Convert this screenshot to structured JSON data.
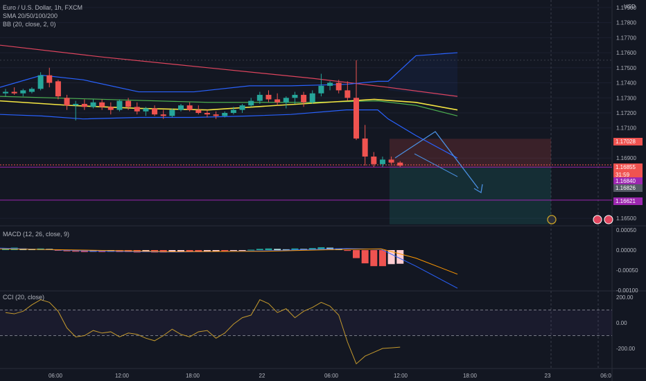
{
  "main_legend": {
    "symbol": "Euro / U.S. Dollar, 1h, FXCM",
    "sma": "SMA 20/50/100/200",
    "bb": "BB (20, close, 2, 0)"
  },
  "currency": "USD",
  "price_axis": [
    "1.17900",
    "1.17800",
    "1.17700",
    "1.17600",
    "1.17500",
    "1.17400",
    "1.17300",
    "1.17200",
    "1.17100",
    "1.16900",
    "1.16500"
  ],
  "price_tags": {
    "stop": "1.17028",
    "last": "1.16855",
    "countdown": "31:59",
    "entry": "1.16840",
    "level": "1.16826",
    "target": "1.16621"
  },
  "macd": {
    "legend": "MACD (12, 26, close, 9)",
    "axis": [
      "0.00050",
      "0.00000",
      "-0.00050",
      "-0.00100"
    ]
  },
  "cci": {
    "legend": "CCI (20, close)",
    "axis": [
      "200.00",
      "0.00",
      "-200.00"
    ]
  },
  "time_axis": [
    "06:00",
    "12:00",
    "18:00",
    "22",
    "06:00",
    "12:00",
    "18:00",
    "23",
    "06:0"
  ],
  "colors": {
    "up": "#26a69a",
    "down": "#ef5350",
    "sma_yellow": "#f5e642",
    "sma_green": "#4caf50",
    "sma_red": "#e0455e",
    "bb_blue": "#2962ff",
    "purple": "#9c27b0",
    "cci": "#c59a2d"
  },
  "chart_data": {
    "type": "candlestick",
    "candles": [
      [
        1.1733,
        1.1736,
        1.1731,
        1.1734
      ],
      [
        1.1734,
        1.1737,
        1.1732,
        1.1733
      ],
      [
        1.1733,
        1.1736,
        1.1731,
        1.1735
      ],
      [
        1.1734,
        1.1737,
        1.1733,
        1.1736
      ],
      [
        1.1736,
        1.1747,
        1.1735,
        1.1745
      ],
      [
        1.1745,
        1.175,
        1.1737,
        1.174
      ],
      [
        1.1741,
        1.1742,
        1.1729,
        1.1731
      ],
      [
        1.173,
        1.1732,
        1.1722,
        1.1725
      ],
      [
        1.1725,
        1.1728,
        1.1715,
        1.1726
      ],
      [
        1.1726,
        1.1729,
        1.1722,
        1.1724
      ],
      [
        1.1724,
        1.1729,
        1.1723,
        1.1727
      ],
      [
        1.1727,
        1.1729,
        1.1722,
        1.1724
      ],
      [
        1.1724,
        1.1727,
        1.1719,
        1.1722
      ],
      [
        1.1722,
        1.1729,
        1.1721,
        1.1728
      ],
      [
        1.1728,
        1.173,
        1.1722,
        1.1724
      ],
      [
        1.1724,
        1.1727,
        1.1719,
        1.1721
      ],
      [
        1.1721,
        1.1724,
        1.1718,
        1.1723
      ],
      [
        1.1723,
        1.1725,
        1.1718,
        1.1719
      ],
      [
        1.1719,
        1.1722,
        1.1716,
        1.1718
      ],
      [
        1.1718,
        1.1723,
        1.1717,
        1.1722
      ],
      [
        1.1722,
        1.1726,
        1.1721,
        1.1725
      ],
      [
        1.1725,
        1.1727,
        1.1721,
        1.1722
      ],
      [
        1.1722,
        1.1725,
        1.1719,
        1.172
      ],
      [
        1.172,
        1.1722,
        1.1717,
        1.1719
      ],
      [
        1.1719,
        1.1721,
        1.1716,
        1.1718
      ],
      [
        1.1718,
        1.1721,
        1.1717,
        1.172
      ],
      [
        1.172,
        1.1724,
        1.1719,
        1.1722
      ],
      [
        1.1722,
        1.1726,
        1.172,
        1.1725
      ],
      [
        1.1725,
        1.173,
        1.1724,
        1.1728
      ],
      [
        1.1728,
        1.1734,
        1.1726,
        1.1732
      ],
      [
        1.1732,
        1.1735,
        1.1727,
        1.1729
      ],
      [
        1.1729,
        1.1733,
        1.1725,
        1.1727
      ],
      [
        1.1727,
        1.1731,
        1.1723,
        1.173
      ],
      [
        1.173,
        1.1734,
        1.1726,
        1.1732
      ],
      [
        1.1732,
        1.1734,
        1.1724,
        1.1727
      ],
      [
        1.1727,
        1.1735,
        1.1726,
        1.1733
      ],
      [
        1.1733,
        1.1746,
        1.1731,
        1.1738
      ],
      [
        1.1738,
        1.1741,
        1.1735,
        1.174
      ],
      [
        1.174,
        1.1742,
        1.1733,
        1.1735
      ],
      [
        1.1735,
        1.1741,
        1.1728,
        1.173
      ],
      [
        1.173,
        1.1755,
        1.1702,
        1.1703
      ],
      [
        1.1703,
        1.1712,
        1.1685,
        1.1691
      ],
      [
        1.1691,
        1.1694,
        1.1684,
        1.1686
      ],
      [
        1.1686,
        1.1691,
        1.1684,
        1.1689
      ],
      [
        1.1689,
        1.1691,
        1.1686,
        1.1687
      ],
      [
        1.1687,
        1.1688,
        1.1684,
        1.1685
      ]
    ],
    "price_range": [
      1.1645,
      1.1795
    ],
    "macd_hist": [
      5e-05,
      6e-05,
      4e-05,
      3e-05,
      4e-05,
      3e-05,
      -1e-05,
      -3e-05,
      -4e-05,
      -5e-05,
      -4e-05,
      -5e-05,
      -4e-05,
      -5e-05,
      -5e-05,
      -6e-05,
      -5e-05,
      -6e-05,
      -6e-05,
      -5e-05,
      -4e-05,
      -4e-05,
      -5e-05,
      -4e-05,
      -3e-05,
      -3e-05,
      -2e-05,
      -1e-05,
      1e-05,
      3e-05,
      4e-05,
      3e-05,
      2e-05,
      4e-05,
      3e-05,
      5e-05,
      7e-05,
      6e-05,
      4e-05,
      -2e-05,
      -0.0002,
      -0.00033,
      -0.0004,
      -0.0004,
      -0.00035,
      -0.00034
    ],
    "cci_values": [
      80,
      70,
      90,
      140,
      180,
      160,
      90,
      -40,
      -110,
      -100,
      -60,
      -80,
      -70,
      -110,
      -80,
      -90,
      -120,
      -140,
      -100,
      -50,
      -90,
      -110,
      -70,
      -60,
      -120,
      -80,
      -10,
      40,
      60,
      180,
      150,
      80,
      110,
      40,
      90,
      120,
      160,
      130,
      60,
      -150,
      -320,
      -260,
      -230,
      -200,
      -195,
      -190
    ]
  }
}
